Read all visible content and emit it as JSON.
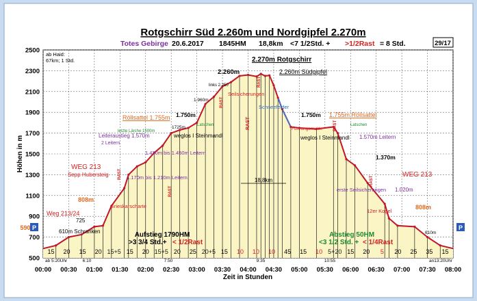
{
  "header": {
    "title": "Rotgschirr Süd 2.260m und Nordgipfel 2.270m",
    "region": "Totes Gebirge",
    "date": "20.6.2017",
    "ascent": "1845HM",
    "distance": "18,8km",
    "duration_prefix": "<7 1/2Std. +",
    "rest": ">1/2Rast",
    "total": "= 8 Std.",
    "page_no": "29/17"
  },
  "chart_data": {
    "type": "area",
    "xlabel": "Zeit in Stunden",
    "ylabel": "Höhen in m",
    "xlim": [
      0,
      480
    ],
    "ylim": [
      500,
      2500
    ],
    "x_tick_labels": [
      "00:00",
      "00:30",
      "01:00",
      "01:30",
      "02:00",
      "02:30",
      "03:00",
      "03:30",
      "04:00",
      "04:30",
      "05:00",
      "05:30",
      "06:00",
      "06:30",
      "07:00",
      "07:30",
      "08:00"
    ],
    "y_ticks": [
      500,
      700,
      900,
      1100,
      1300,
      1500,
      1700,
      1900,
      2100,
      2300,
      2500
    ],
    "x_minutes": [
      0,
      15,
      30,
      45,
      60,
      70,
      80,
      95,
      100,
      110,
      120,
      130,
      140,
      150,
      160,
      170,
      180,
      190,
      200,
      210,
      220,
      230,
      240,
      250,
      255,
      260,
      265,
      270,
      275,
      280,
      290,
      300,
      320,
      340,
      345,
      355,
      365,
      380,
      400,
      405,
      415,
      435,
      450,
      465,
      480
    ],
    "elevation": [
      590,
      620,
      700,
      725,
      800,
      810,
      1000,
      1170,
      1300,
      1380,
      1420,
      1510,
      1580,
      1700,
      1730,
      1750,
      1800,
      1980,
      2050,
      2150,
      2190,
      2250,
      2260,
      2245,
      2270,
      2250,
      2255,
      2160,
      2040,
      1930,
      1760,
      1750,
      1740,
      1760,
      1700,
      1450,
      1390,
      1220,
      1020,
      880,
      810,
      800,
      700,
      620,
      590
    ]
  },
  "info_box": [
    "ab Haid:",
    "67km; 1 Std."
  ],
  "p_marker": "P",
  "p_label_value": "590",
  "segment_minutes": [
    "15",
    "20",
    "15",
    "20",
    "15+5",
    "15",
    "20",
    "15+5",
    "20",
    "25",
    "20+5",
    "15",
    "10",
    "10",
    "10",
    "45",
    "15",
    "10",
    "5+20",
    "15",
    "20",
    "5",
    "20",
    "25",
    "35",
    "15"
  ],
  "bottom_notes": [
    "ab 5:20Uhr",
    "6:10",
    "7:50",
    "9:35",
    "10:55",
    "an13:20Uhr"
  ],
  "aufstieg": {
    "title": "Aufstieg 1790HM",
    "detail_1": ">3 3/4 Std.+",
    "detail_2": "< 1/2Rast"
  },
  "abstieg": {
    "title": "Abstieg 50HM",
    "detail_1": "<3 1/2 Std. +",
    "detail_2": "< 1/4Rast"
  },
  "distance_marker": "18,8km",
  "labels": {
    "weg_left_1": "Weg 213/24",
    "weg_left_2": "WEG 213",
    "sepp": "Sepp Hubersteig",
    "m808_left": "808m",
    "m808_right": "808m",
    "m725": "725",
    "schranken": "610m Schranken",
    "m610_right": "610m",
    "grieskar": "Grieskarscharte",
    "leiteraustieg": "Leiteraustieg 1.570m",
    "leitern": "2 Leitern",
    "rollsattel_left": "Röllsattel 1.755m",
    "latschen_1": "letzte Lärche 1500m",
    "m1170": "1.170m bis 1.210m Leitern",
    "m1430": "1.430m bis 1.450m Leitern",
    "m1725": "1725m",
    "m1750_left": "1.750m",
    "weglos_left": "weglos I Steinmandl",
    "latschen_2": "Latschen",
    "m1960": "1.960m",
    "links": "links 2.250",
    "seilsicherungen": "Seilsicherungen",
    "m2260": "2.260m",
    "m2270": "2.270m Rotgschirr",
    "suedgipfel": "2.260m Südgipfel",
    "schneefelder": "Schneefelder",
    "fuehrung": "Führungsmulde",
    "m1750_right": "1.750m",
    "rollsattel_right": "1.755m Röllsattel",
    "weglos_right": "weglos I Steinmandl",
    "latschen_3": "Latschen",
    "m1570_right": "1.570m Leitern",
    "m1370": "1.370m",
    "weg_right": "WEG 213",
    "erste": "erste Seilsicherungen",
    "m1020": "1.020m",
    "kogel": "12er Kogel",
    "rast_1": "RAST",
    "rast_2": "RAST",
    "rast_3": "RAST",
    "rast_4": "RAST",
    "rast_5": "RAST",
    "rast_6": "RAST",
    "rast_7": "RAST"
  }
}
